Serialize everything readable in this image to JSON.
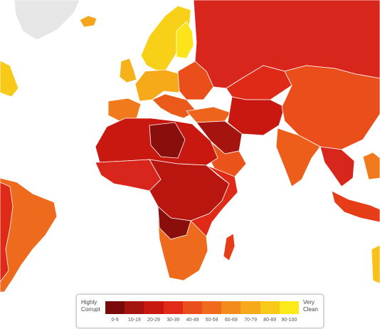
{
  "legend": {
    "low_label": "Highly Corrupt",
    "high_label": "Very Clean",
    "bins": [
      {
        "label": "0-9",
        "color": "#7a0b0b"
      },
      {
        "label": "10-19",
        "color": "#a5140f"
      },
      {
        "label": "20-29",
        "color": "#c8180f"
      },
      {
        "label": "30-39",
        "color": "#e12a18"
      },
      {
        "label": "40-49",
        "color": "#ea4e1a"
      },
      {
        "label": "50-59",
        "color": "#f06a1c"
      },
      {
        "label": "60-69",
        "color": "#f38b1c"
      },
      {
        "label": "70-79",
        "color": "#f6aa1a"
      },
      {
        "label": "80-89",
        "color": "#f8c918"
      },
      {
        "label": "90-100",
        "color": "#fbe91a"
      }
    ]
  }
}
